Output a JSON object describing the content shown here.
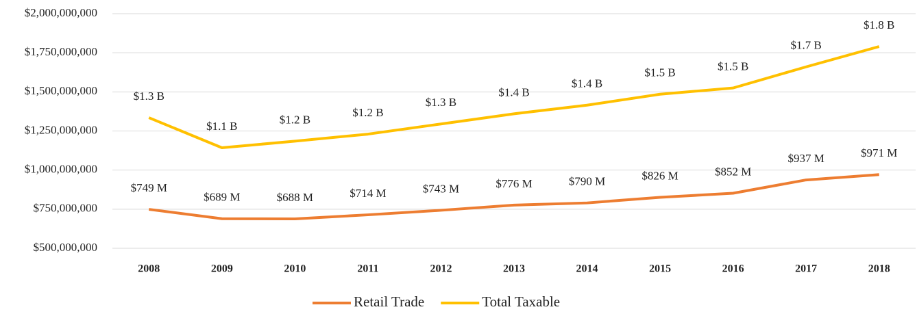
{
  "chart_data": {
    "type": "line",
    "categories": [
      "2008",
      "2009",
      "2010",
      "2011",
      "2012",
      "2013",
      "2014",
      "2015",
      "2016",
      "2017",
      "2018"
    ],
    "series": [
      {
        "name": "Retail Trade",
        "color": "#ED7D31",
        "values": [
          749000000,
          689000000,
          688000000,
          714000000,
          743000000,
          776000000,
          790000000,
          826000000,
          852000000,
          937000000,
          971000000
        ],
        "value_labels": [
          "$749 M",
          "$689 M",
          "$688 M",
          "$714 M",
          "$743 M",
          "$776 M",
          "$790 M",
          "$826 M",
          "$852 M",
          "$937 M",
          "$971 M"
        ]
      },
      {
        "name": "Total Taxable",
        "color": "#FFC000",
        "values": [
          1335000000,
          1143000000,
          1185000000,
          1230000000,
          1295000000,
          1360000000,
          1415000000,
          1485000000,
          1525000000,
          1660000000,
          1790000000
        ],
        "value_labels": [
          "$1.3 B",
          "$1.1 B",
          "$1.2 B",
          "$1.2 B",
          "$1.3 B",
          "$1.4 B",
          "$1.4 B",
          "$1.5 B",
          "$1.5 B",
          "$1.7 B",
          "$1.8 B"
        ]
      }
    ],
    "ylim": [
      500000000,
      2000000000
    ],
    "yticks": [
      {
        "value": 500000000,
        "label": "$500,000,000"
      },
      {
        "value": 750000000,
        "label": "$750,000,000"
      },
      {
        "value": 1000000000,
        "label": "$1,000,000,000"
      },
      {
        "value": 1250000000,
        "label": "$1,250,000,000"
      },
      {
        "value": 1500000000,
        "label": "$1,500,000,000"
      },
      {
        "value": 1750000000,
        "label": "$1,750,000,000"
      },
      {
        "value": 2000000000,
        "label": "$2,000,000,000"
      }
    ],
    "grid": true,
    "legend": "bottom"
  }
}
